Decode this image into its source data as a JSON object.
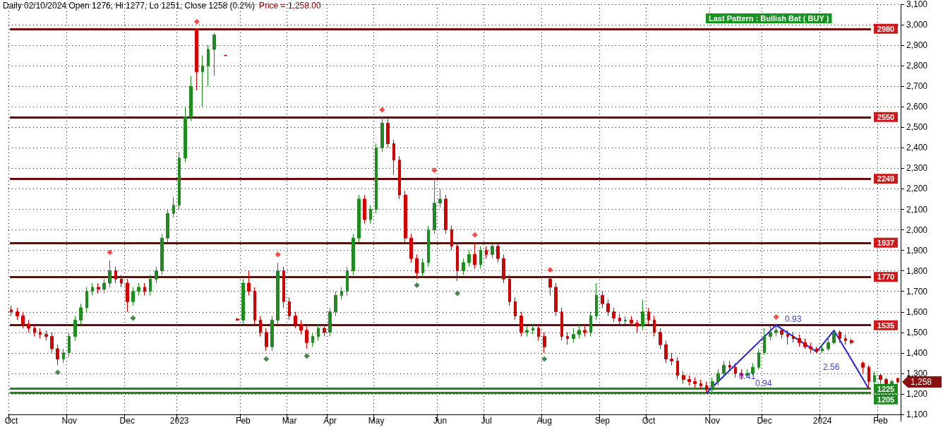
{
  "chart_data": {
    "type": "candlestick",
    "title": "Daily 02/10/2024 Open 1276, Hi 1277, Lo 1251, Close 1258 (0.2%)",
    "subtitle": "Price = 1,258.00",
    "categories": [
      "Oct",
      null,
      null,
      null,
      null,
      null,
      null,
      null,
      null,
      null,
      "Nov",
      null,
      null,
      null,
      null,
      null,
      null,
      null,
      null,
      null,
      "Dec",
      null,
      null,
      null,
      null,
      null,
      null,
      null,
      null,
      "2023",
      null,
      null,
      null,
      null,
      null,
      null,
      null,
      null,
      null,
      null,
      "Feb",
      null,
      null,
      null,
      null,
      null,
      null,
      null,
      "Mar",
      null,
      null,
      null,
      null,
      null,
      null,
      "Apr",
      null,
      null,
      null,
      null,
      null,
      null,
      null,
      "May",
      null,
      null,
      null,
      null,
      null,
      null,
      null,
      null,
      null,
      null,
      "Jun",
      null,
      null,
      null,
      null,
      null,
      null,
      null,
      "Jul",
      null,
      null,
      null,
      null,
      null,
      null,
      null,
      null,
      null,
      "Aug",
      null,
      null,
      null,
      null,
      null,
      null,
      null,
      null,
      null,
      "Sep",
      null,
      null,
      null,
      null,
      null,
      null,
      null,
      "Oct",
      null,
      null,
      null,
      null,
      null,
      null,
      null,
      null,
      null,
      null,
      "Nov",
      null,
      null,
      null,
      null,
      null,
      null,
      null,
      null,
      "Dec",
      null,
      null,
      null,
      null,
      null,
      null,
      null,
      null,
      null,
      "2024",
      null,
      null,
      null,
      null,
      null,
      null,
      null,
      null,
      null,
      "Feb",
      null,
      null,
      null
    ],
    "ohlc": [
      [
        1610,
        1630,
        1580,
        1600
      ],
      [
        1600,
        1620,
        1560,
        1580
      ],
      [
        1580,
        1600,
        1520,
        1540
      ],
      [
        1540,
        1560,
        1500,
        1520
      ],
      [
        1520,
        1540,
        1480,
        1500
      ],
      [
        1500,
        1520,
        1470,
        1490
      ],
      [
        1490,
        1510,
        1460,
        1480
      ],
      [
        1480,
        1500,
        1400,
        1420
      ],
      [
        1420,
        1440,
        1340,
        1370
      ],
      [
        1370,
        1420,
        1350,
        1400
      ],
      [
        1400,
        1500,
        1380,
        1480
      ],
      [
        1480,
        1580,
        1460,
        1560
      ],
      [
        1560,
        1640,
        1540,
        1620
      ],
      [
        1620,
        1720,
        1600,
        1700
      ],
      [
        1700,
        1740,
        1680,
        1720
      ],
      [
        1720,
        1740,
        1690,
        1710
      ],
      [
        1710,
        1760,
        1690,
        1740
      ],
      [
        1740,
        1850,
        1720,
        1800
      ],
      [
        1800,
        1820,
        1740,
        1760
      ],
      [
        1760,
        1780,
        1720,
        1740
      ],
      [
        1740,
        1760,
        1600,
        1650
      ],
      [
        1650,
        1720,
        1630,
        1700
      ],
      [
        1700,
        1740,
        1680,
        1720
      ],
      [
        1720,
        1740,
        1680,
        1700
      ],
      [
        1700,
        1780,
        1680,
        1760
      ],
      [
        1760,
        1820,
        1740,
        1800
      ],
      [
        1800,
        1980,
        1780,
        1960
      ],
      [
        1960,
        2100,
        1940,
        2080
      ],
      [
        2080,
        2160,
        2060,
        2120
      ],
      [
        2120,
        2380,
        2100,
        2350
      ],
      [
        2350,
        2600,
        2330,
        2550
      ],
      [
        2550,
        2750,
        2530,
        2700
      ],
      [
        2980,
        2980,
        2680,
        2770
      ],
      [
        2770,
        2850,
        2600,
        2800
      ],
      [
        2800,
        2900,
        2700,
        2880
      ],
      [
        2880,
        2960,
        2750,
        2950
      ],
      null,
      [
        2850,
        2855,
        2845,
        2850
      ],
      null,
      [
        1565,
        1570,
        1555,
        1560
      ],
      [
        1560,
        1760,
        1540,
        1740
      ],
      [
        1740,
        1800,
        1680,
        1700
      ],
      [
        1700,
        1720,
        1540,
        1560
      ],
      [
        1560,
        1580,
        1480,
        1500
      ],
      [
        1500,
        1520,
        1410,
        1430
      ],
      [
        1430,
        1580,
        1410,
        1560
      ],
      [
        1560,
        1840,
        1540,
        1800
      ],
      [
        1800,
        1820,
        1620,
        1650
      ],
      [
        1650,
        1670,
        1560,
        1580
      ],
      [
        1580,
        1600,
        1520,
        1540
      ],
      [
        1540,
        1560,
        1490,
        1510
      ],
      [
        1510,
        1530,
        1420,
        1450
      ],
      [
        1450,
        1500,
        1430,
        1480
      ],
      [
        1480,
        1540,
        1460,
        1520
      ],
      [
        1520,
        1540,
        1480,
        1500
      ],
      [
        1500,
        1620,
        1480,
        1600
      ],
      [
        1600,
        1700,
        1580,
        1680
      ],
      [
        1680,
        1720,
        1660,
        1700
      ],
      [
        1700,
        1820,
        1680,
        1800
      ],
      [
        1800,
        1980,
        1780,
        1960
      ],
      [
        1960,
        2170,
        1940,
        2150
      ],
      [
        2150,
        2170,
        2030,
        2050
      ],
      [
        2050,
        2120,
        2030,
        2100
      ],
      [
        2100,
        2420,
        2080,
        2400
      ],
      [
        2400,
        2550,
        2380,
        2520
      ],
      [
        2520,
        2540,
        2400,
        2420
      ],
      [
        2420,
        2440,
        2270,
        2340
      ],
      [
        2340,
        2360,
        2150,
        2170
      ],
      [
        2170,
        2190,
        1940,
        1960
      ],
      [
        1960,
        1980,
        1840,
        1860
      ],
      [
        1860,
        1880,
        1760,
        1790
      ],
      [
        1790,
        1860,
        1770,
        1840
      ],
      [
        1840,
        2020,
        1820,
        2000
      ],
      [
        2000,
        2249,
        1980,
        2130
      ],
      [
        2130,
        2200,
        2110,
        2150
      ],
      [
        2150,
        2170,
        1980,
        2000
      ],
      [
        2000,
        2020,
        1900,
        1920
      ],
      [
        1920,
        1940,
        1750,
        1800
      ],
      [
        1800,
        1860,
        1780,
        1840
      ],
      [
        1840,
        1900,
        1820,
        1880
      ],
      [
        1880,
        1937,
        1810,
        1830
      ],
      [
        1830,
        1920,
        1810,
        1900
      ],
      [
        1900,
        1920,
        1860,
        1880
      ],
      [
        1880,
        1930,
        1860,
        1920
      ],
      [
        1920,
        1930,
        1840,
        1860
      ],
      [
        1860,
        1880,
        1740,
        1760
      ],
      [
        1760,
        1780,
        1630,
        1650
      ],
      [
        1650,
        1670,
        1560,
        1580
      ],
      [
        1580,
        1600,
        1480,
        1500
      ],
      [
        1500,
        1530,
        1480,
        1510
      ],
      [
        1510,
        1540,
        1490,
        1520
      ],
      [
        1520,
        1540,
        1460,
        1480
      ],
      [
        1480,
        1500,
        1400,
        1430
      ],
      [
        1760,
        1770,
        1680,
        1720
      ],
      [
        1720,
        1740,
        1580,
        1600
      ],
      [
        1600,
        1620,
        1460,
        1480
      ],
      [
        1480,
        1500,
        1440,
        1470
      ],
      [
        1470,
        1520,
        1450,
        1490
      ],
      [
        1490,
        1540,
        1470,
        1510
      ],
      [
        1510,
        1530,
        1480,
        1500
      ],
      [
        1500,
        1600,
        1480,
        1580
      ],
      [
        1580,
        1740,
        1560,
        1680
      ],
      [
        1680,
        1700,
        1620,
        1640
      ],
      [
        1640,
        1660,
        1580,
        1600
      ],
      [
        1600,
        1620,
        1550,
        1570
      ],
      [
        1570,
        1590,
        1540,
        1555
      ],
      [
        1555,
        1580,
        1540,
        1560
      ],
      [
        1560,
        1580,
        1530,
        1545
      ],
      [
        1545,
        1560,
        1500,
        1530
      ],
      [
        1530,
        1660,
        1510,
        1600
      ],
      [
        1600,
        1620,
        1540,
        1560
      ],
      [
        1560,
        1580,
        1480,
        1500
      ],
      [
        1500,
        1520,
        1420,
        1440
      ],
      [
        1440,
        1460,
        1350,
        1370
      ],
      [
        1370,
        1400,
        1340,
        1360
      ],
      [
        1360,
        1380,
        1270,
        1290
      ],
      [
        1290,
        1310,
        1250,
        1270
      ],
      [
        1270,
        1290,
        1240,
        1260
      ],
      [
        1260,
        1280,
        1230,
        1250
      ],
      [
        1250,
        1270,
        1220,
        1240
      ],
      [
        1240,
        1260,
        1205,
        1220
      ],
      [
        1220,
        1280,
        1210,
        1260
      ],
      [
        1260,
        1320,
        1240,
        1300
      ],
      [
        1300,
        1360,
        1280,
        1340
      ],
      [
        1340,
        1360,
        1310,
        1330
      ],
      [
        1330,
        1350,
        1280,
        1300
      ],
      [
        1300,
        1320,
        1270,
        1290
      ],
      [
        1290,
        1320,
        1280,
        1300
      ],
      [
        1300,
        1350,
        1290,
        1330
      ],
      [
        1330,
        1420,
        1320,
        1400
      ],
      [
        1400,
        1520,
        1390,
        1480
      ],
      [
        1480,
        1530,
        1460,
        1500
      ],
      [
        1500,
        1535,
        1480,
        1510
      ],
      [
        1510,
        1520,
        1470,
        1490
      ],
      [
        1490,
        1510,
        1440,
        1480
      ],
      [
        1480,
        1500,
        1450,
        1470
      ],
      [
        1470,
        1490,
        1430,
        1450
      ],
      [
        1450,
        1470,
        1420,
        1430
      ],
      [
        1430,
        1450,
        1400,
        1420
      ],
      [
        1420,
        1430,
        1400,
        1410
      ],
      [
        1410,
        1440,
        1400,
        1420
      ],
      [
        1420,
        1480,
        1410,
        1450
      ],
      [
        1450,
        1510,
        1440,
        1500
      ],
      [
        1500,
        1510,
        1450,
        1470
      ],
      [
        1470,
        1490,
        1440,
        1460
      ],
      [
        1460,
        1470,
        1440,
        1450
      ],
      null,
      [
        1350,
        1360,
        1300,
        1330
      ],
      [
        1330,
        1340,
        1225,
        1260
      ],
      [
        1260,
        1310,
        1250,
        1290
      ],
      [
        1290,
        1300,
        1250,
        1270
      ],
      [
        1270,
        1280,
        1240,
        1250
      ],
      [
        1250,
        1270,
        1240,
        1260
      ],
      [
        1276,
        1277,
        1251,
        1258
      ]
    ],
    "series": [
      {
        "type": "scatter",
        "color": "#ff1a1a",
        "values": [
          null,
          null,
          null,
          null,
          null,
          null,
          null,
          null,
          null,
          null,
          null,
          null,
          null,
          null,
          null,
          null,
          null,
          1890,
          null,
          null,
          null,
          null,
          null,
          null,
          null,
          null,
          null,
          null,
          null,
          null,
          null,
          null,
          3015,
          null,
          null,
          null,
          null,
          null,
          null,
          null,
          null,
          null,
          null,
          null,
          null,
          null,
          1880,
          null,
          null,
          null,
          null,
          null,
          null,
          null,
          null,
          null,
          null,
          null,
          null,
          null,
          null,
          null,
          null,
          null,
          2585,
          null,
          null,
          null,
          null,
          null,
          null,
          null,
          null,
          2290,
          null,
          null,
          null,
          null,
          null,
          null,
          1975,
          null,
          null,
          null,
          null,
          null,
          null,
          null,
          null,
          null,
          null,
          null,
          null,
          1805,
          null,
          null,
          null,
          null,
          null,
          null,
          null,
          null,
          null,
          null,
          null,
          null,
          null,
          null,
          null,
          null,
          null,
          null,
          null,
          null,
          null,
          null,
          null,
          null,
          null,
          null,
          null,
          null,
          null,
          null,
          null,
          null,
          null,
          null,
          null,
          null,
          null,
          null,
          1575,
          null,
          null,
          null,
          null,
          null,
          null,
          null,
          null,
          null,
          null,
          null,
          null,
          null,
          null,
          null,
          null,
          null,
          null,
          null,
          null,
          null
        ]
      },
      {
        "type": "scatter",
        "color": "#1a6b1a",
        "values": [
          null,
          null,
          null,
          null,
          null,
          null,
          null,
          null,
          1305,
          null,
          null,
          null,
          null,
          null,
          null,
          null,
          null,
          null,
          null,
          null,
          null,
          1570,
          null,
          null,
          null,
          null,
          null,
          null,
          null,
          null,
          null,
          null,
          null,
          null,
          null,
          null,
          null,
          null,
          null,
          null,
          null,
          null,
          null,
          null,
          1370,
          null,
          null,
          null,
          null,
          null,
          null,
          1385,
          null,
          null,
          null,
          null,
          null,
          null,
          null,
          null,
          null,
          null,
          null,
          null,
          null,
          null,
          null,
          null,
          null,
          null,
          1730,
          null,
          null,
          null,
          null,
          null,
          null,
          1690,
          null,
          null,
          null,
          null,
          null,
          null,
          null,
          null,
          null,
          null,
          null,
          null,
          null,
          null,
          1370,
          null,
          null,
          null,
          null,
          null,
          null,
          null,
          null,
          null,
          null,
          null,
          null,
          null,
          null,
          null,
          null,
          null,
          null,
          null,
          null,
          null,
          null,
          null,
          null,
          null,
          null,
          null,
          null,
          null,
          null,
          null,
          null,
          null,
          null,
          null,
          null,
          null,
          null,
          null,
          null,
          null,
          null,
          null,
          null,
          null,
          null,
          null,
          null,
          null,
          null,
          null,
          null,
          null,
          null,
          null,
          null,
          null,
          null,
          null,
          null,
          null
        ]
      },
      {
        "type": "line",
        "color": "#2020e0",
        "marker": "none",
        "values": [
          null,
          null,
          null,
          null,
          null,
          null,
          null,
          null,
          null,
          null,
          null,
          null,
          null,
          null,
          null,
          null,
          null,
          null,
          null,
          null,
          null,
          null,
          null,
          null,
          null,
          null,
          null,
          null,
          null,
          null,
          null,
          null,
          null,
          null,
          null,
          null,
          null,
          null,
          null,
          null,
          null,
          null,
          null,
          null,
          null,
          null,
          null,
          null,
          null,
          null,
          null,
          null,
          null,
          null,
          null,
          null,
          null,
          null,
          null,
          null,
          null,
          null,
          null,
          null,
          null,
          null,
          null,
          null,
          null,
          null,
          null,
          null,
          null,
          null,
          null,
          null,
          null,
          null,
          null,
          null,
          null,
          null,
          null,
          null,
          null,
          null,
          null,
          null,
          null,
          null,
          null,
          null,
          null,
          null,
          null,
          null,
          null,
          null,
          null,
          null,
          null,
          null,
          null,
          null,
          null,
          null,
          null,
          null,
          null,
          null,
          null,
          null,
          null,
          null,
          null,
          null,
          null,
          null,
          null,
          null,
          1205,
          null,
          null,
          null,
          null,
          null,
          null,
          null,
          null,
          null,
          null,
          null,
          1535,
          null,
          null,
          null,
          null,
          null,
          null,
          1405,
          null,
          null,
          1510,
          null,
          null,
          null,
          null,
          null,
          1225,
          null,
          null,
          null,
          null,
          null
        ]
      }
    ],
    "marker": "diamond",
    "ylim": [
      1100,
      3100
    ],
    "yticks": [
      {
        "value": 1100,
        "label": "1,100"
      },
      {
        "value": 1200,
        "label": "1,200"
      },
      {
        "value": 1300,
        "label": "1,300"
      },
      {
        "value": 1400,
        "label": "1,400"
      },
      {
        "value": 1500,
        "label": "1,500"
      },
      {
        "value": 1600,
        "label": "1,600"
      },
      {
        "value": 1700,
        "label": "1,700"
      },
      {
        "value": 1800,
        "label": "1,800"
      },
      {
        "value": 1900,
        "label": "1,900"
      },
      {
        "value": 2000,
        "label": "2,000"
      },
      {
        "value": 2100,
        "label": "2,100"
      },
      {
        "value": 2200,
        "label": "2,200"
      },
      {
        "value": 2300,
        "label": "2,300"
      },
      {
        "value": 2400,
        "label": "2,400"
      },
      {
        "value": 2500,
        "label": "2,500"
      },
      {
        "value": 2600,
        "label": "2,600"
      },
      {
        "value": 2700,
        "label": "2,700"
      },
      {
        "value": 2800,
        "label": "2,800"
      },
      {
        "value": 2900,
        "label": "2,900"
      },
      {
        "value": 3000,
        "label": "3,000"
      },
      {
        "value": 3100,
        "label": "3,100"
      }
    ],
    "grid": true,
    "ref_lines": [
      {
        "axis": "y",
        "value": 2980,
        "label": "2980",
        "color": "#6b0a0a"
      },
      {
        "axis": "y",
        "value": 2550,
        "label": "2550",
        "color": "#6b0a0a"
      },
      {
        "axis": "y",
        "value": 2249,
        "label": "2249",
        "color": "#6b0a0a"
      },
      {
        "axis": "y",
        "value": 1937,
        "label": "1937",
        "color": "#6b0a0a"
      },
      {
        "axis": "y",
        "value": 1770,
        "label": "1770",
        "color": "#6b0a0a"
      },
      {
        "axis": "y",
        "value": 1535,
        "label": "1535",
        "color": "#6b0a0a"
      },
      {
        "axis": "y",
        "value": 1225,
        "label": "1225",
        "color": "#1a8a1a"
      },
      {
        "axis": "y",
        "value": 1205,
        "label": "1205",
        "color": "#1a8a1a"
      }
    ],
    "annotations": [
      "Last Pattern : Bullish Bat ( BUY )",
      "1,258",
      "0.93",
      "0.41",
      "2.56",
      "0.94"
    ]
  }
}
